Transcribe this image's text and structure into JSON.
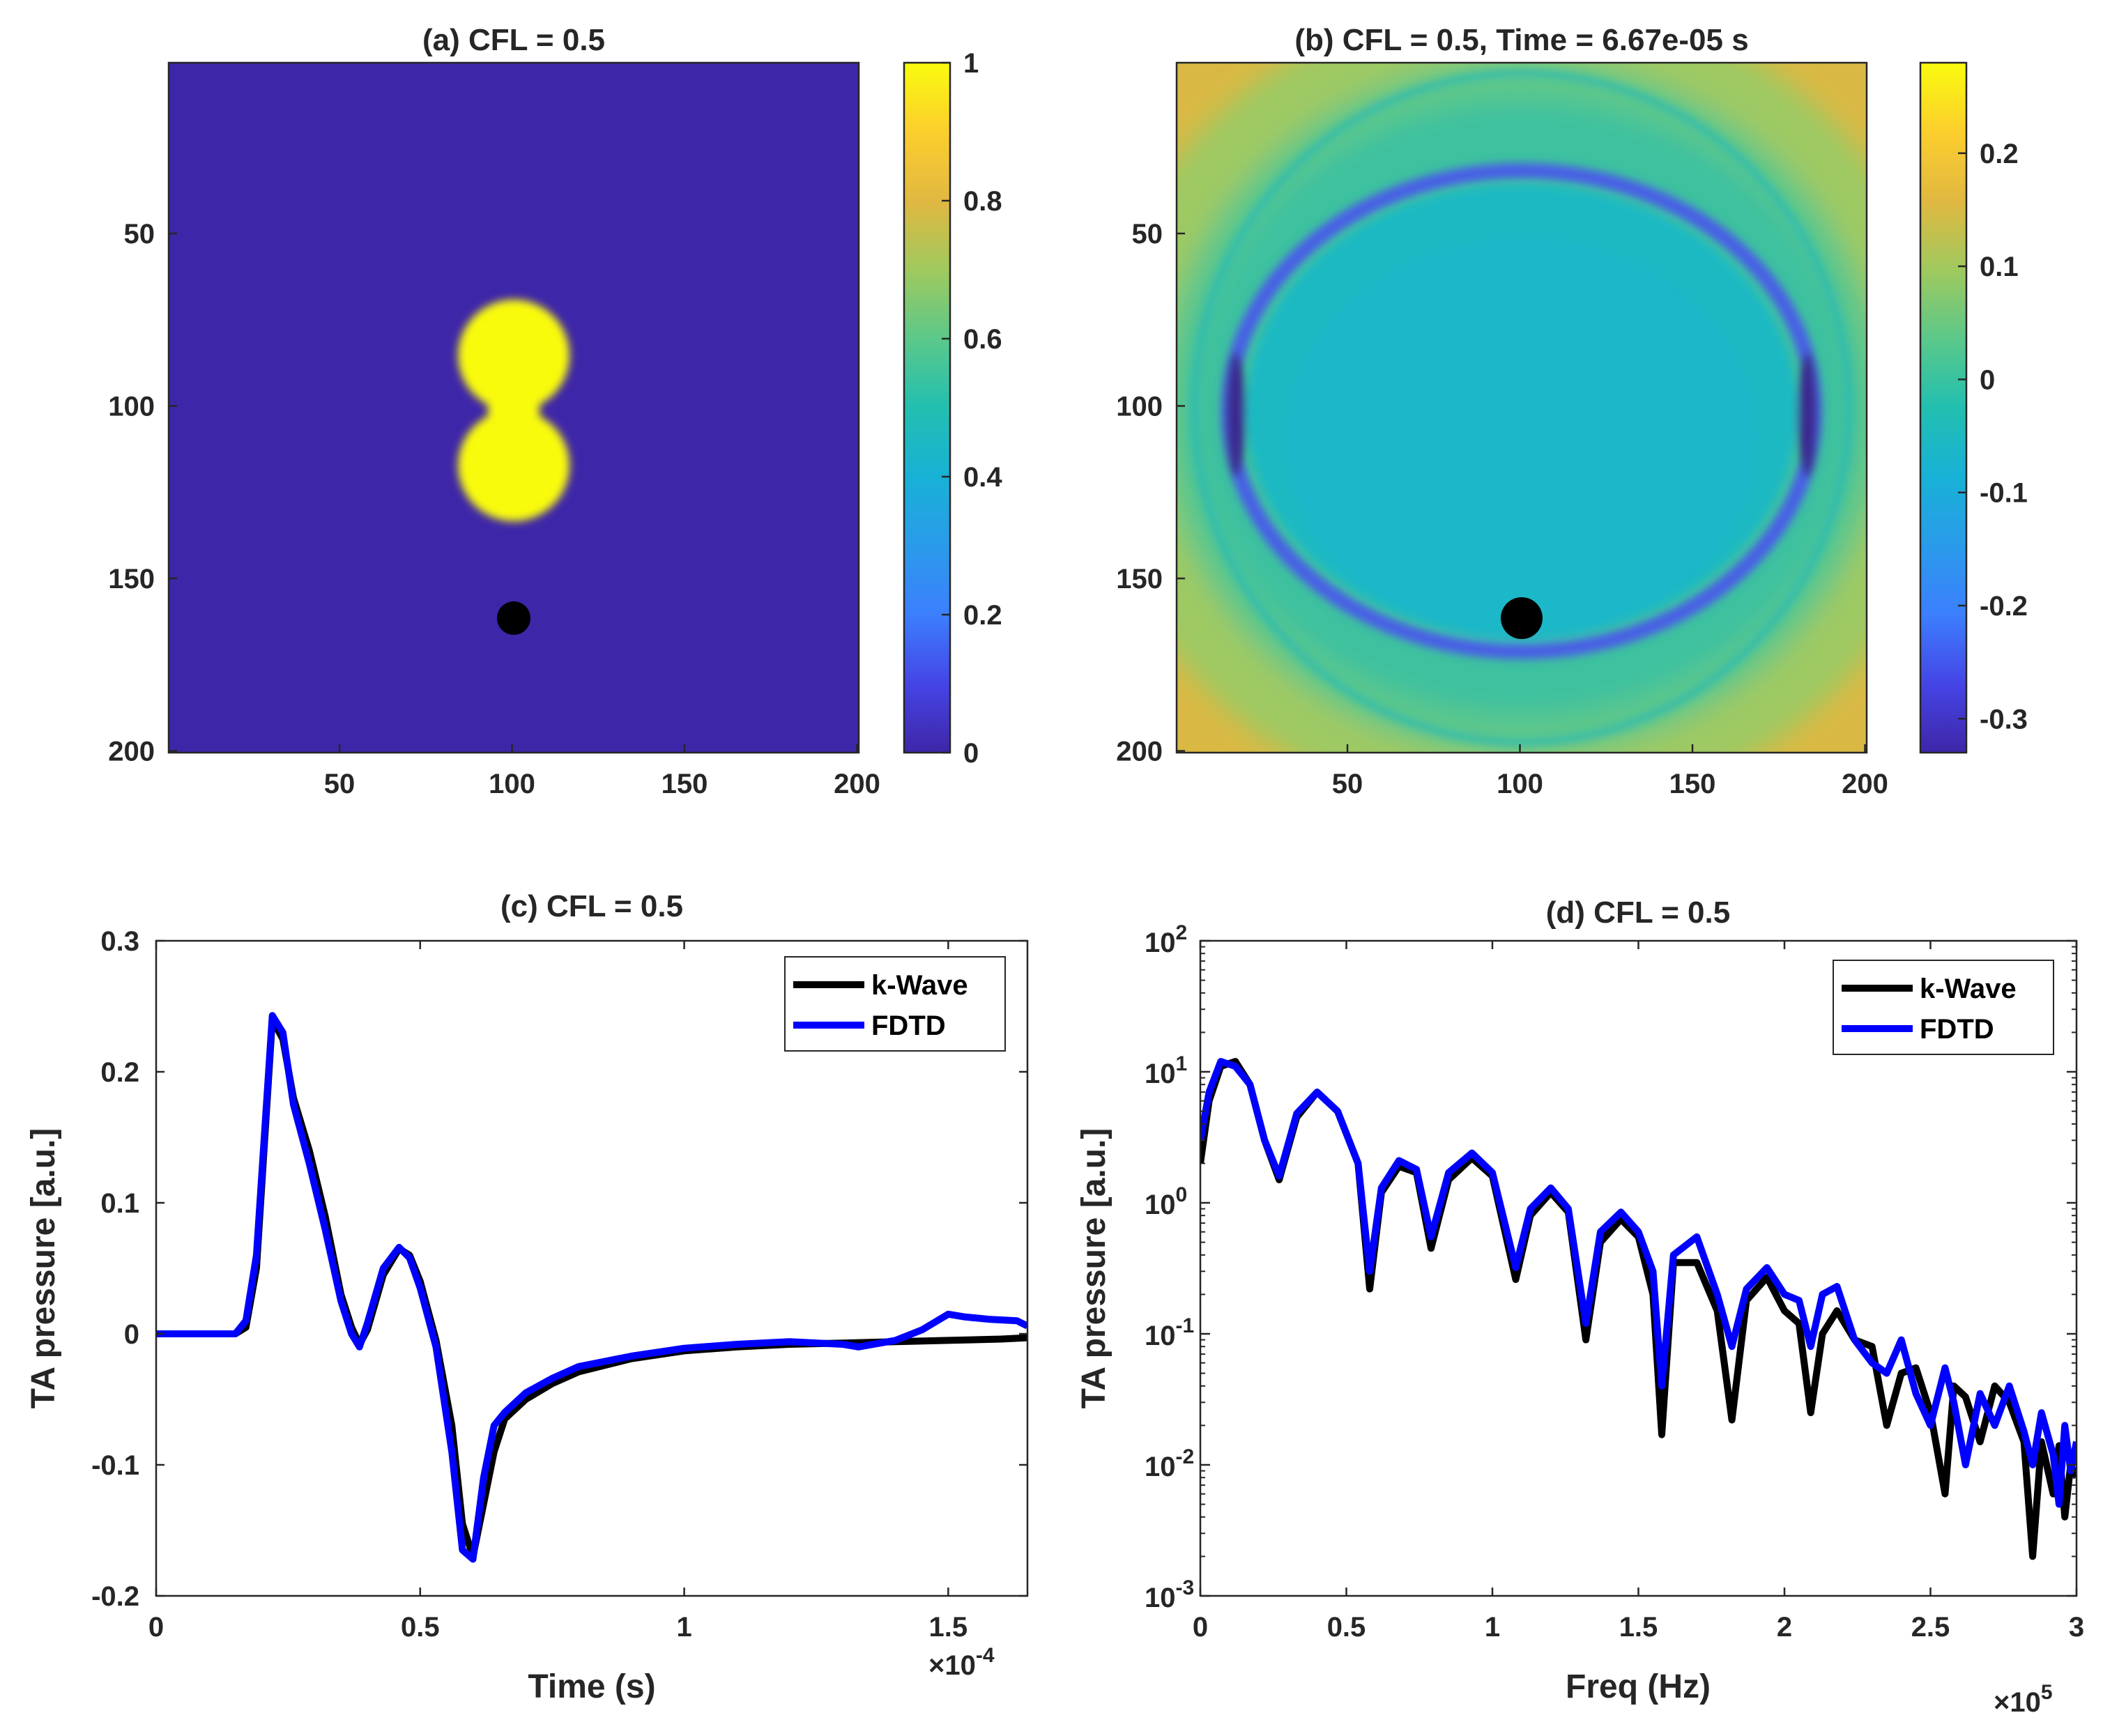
{
  "chart_data": [
    {
      "type": "heatmap",
      "title": "(a) CFL = 0.5",
      "xticks": [
        "50",
        "100",
        "150",
        "200"
      ],
      "yticks": [
        "50",
        "100",
        "150",
        "200"
      ],
      "xlim": [
        0.5,
        200.5
      ],
      "ylim": [
        0.5,
        200.5
      ],
      "colorbar": {
        "ticks": [
          "0",
          "0.2",
          "0.4",
          "0.6",
          "0.8",
          "1"
        ],
        "range": [
          0,
          1
        ]
      },
      "source": {
        "centers": [
          [
            100,
            84
          ],
          [
            100,
            116
          ]
        ],
        "radius": 16,
        "value": 1
      },
      "detector": {
        "x": 100,
        "y": 160
      },
      "colormap": "parula"
    },
    {
      "type": "heatmap",
      "title": "(b) CFL = 0.5, Time = 6.67e-05 s",
      "xticks": [
        "50",
        "100",
        "150",
        "200"
      ],
      "yticks": [
        "50",
        "100",
        "150",
        "200"
      ],
      "xlim": [
        0.5,
        200.5
      ],
      "ylim": [
        0.5,
        200.5
      ],
      "colorbar": {
        "ticks": [
          "0.2",
          "0.1",
          "0",
          "-0.1",
          "-0.2",
          "-0.3"
        ],
        "range": [
          -0.33,
          0.28
        ]
      },
      "detector": {
        "x": 100,
        "y": 160
      },
      "colormap": "parula"
    },
    {
      "type": "line",
      "title": "(c) CFL = 0.5",
      "xlabel": "Time (s)",
      "ylabel": "TA pressure [a.u.]",
      "xlim": [
        0,
        0.000165
      ],
      "ylim": [
        -0.2,
        0.3
      ],
      "xticks": [
        "0",
        "0.5",
        "1",
        "1.5"
      ],
      "yticks": [
        "0.3",
        "0.2",
        "0.1",
        "0",
        "-0.1",
        "-0.2"
      ],
      "x_exponent": "×10",
      "x_exponent_power": "-4",
      "legend_position": "top-right",
      "series": [
        {
          "name": "k-Wave",
          "color": "#000000",
          "x": [
            0,
            0.15,
            0.17,
            0.19,
            0.22,
            0.24,
            0.26,
            0.29,
            0.32,
            0.35,
            0.37,
            0.385,
            0.4,
            0.43,
            0.46,
            0.48,
            0.5,
            0.53,
            0.56,
            0.58,
            0.6,
            0.62,
            0.64,
            0.66,
            0.7,
            0.75,
            0.8,
            0.9,
            1.0,
            1.1,
            1.2,
            1.3,
            1.4,
            1.5,
            1.6,
            1.65
          ],
          "y": [
            0,
            0,
            0.005,
            0.05,
            0.24,
            0.225,
            0.18,
            0.14,
            0.09,
            0.03,
            0.005,
            -0.008,
            0.003,
            0.045,
            0.065,
            0.06,
            0.04,
            -0.005,
            -0.07,
            -0.145,
            -0.17,
            -0.13,
            -0.09,
            -0.065,
            -0.05,
            -0.038,
            -0.029,
            -0.019,
            -0.013,
            -0.01,
            -0.008,
            -0.007,
            -0.006,
            -0.005,
            -0.004,
            -0.003
          ]
        },
        {
          "name": "FDTD",
          "color": "#0000ff",
          "x": [
            0,
            0.15,
            0.17,
            0.19,
            0.22,
            0.24,
            0.26,
            0.29,
            0.32,
            0.35,
            0.37,
            0.385,
            0.4,
            0.43,
            0.46,
            0.48,
            0.5,
            0.53,
            0.56,
            0.58,
            0.6,
            0.62,
            0.64,
            0.66,
            0.7,
            0.75,
            0.8,
            0.9,
            1.0,
            1.1,
            1.2,
            1.3,
            1.33,
            1.4,
            1.45,
            1.5,
            1.53,
            1.58,
            1.63,
            1.65
          ],
          "y": [
            0,
            0,
            0.01,
            0.06,
            0.243,
            0.23,
            0.175,
            0.13,
            0.08,
            0.025,
            0.0,
            -0.01,
            0.008,
            0.05,
            0.066,
            0.058,
            0.035,
            -0.01,
            -0.09,
            -0.165,
            -0.172,
            -0.11,
            -0.07,
            -0.06,
            -0.045,
            -0.034,
            -0.025,
            -0.017,
            -0.011,
            -0.008,
            -0.006,
            -0.008,
            -0.01,
            -0.005,
            0.003,
            0.015,
            0.013,
            0.011,
            0.01,
            0.006
          ]
        }
      ]
    },
    {
      "type": "line",
      "title": "(d) CFL = 0.5",
      "xlabel": "Freq (Hz)",
      "ylabel": "TA pressure [a.u.]",
      "xscale": "linear",
      "yscale": "log",
      "xlim": [
        0,
        300000
      ],
      "ylim": [
        0.001,
        100
      ],
      "xticks": [
        "0",
        "0.5",
        "1",
        "1.5",
        "2",
        "2.5",
        "3"
      ],
      "yticks": [
        {
          "base": "10",
          "exp": "2",
          "value": 100
        },
        {
          "base": "10",
          "exp": "1",
          "value": 10
        },
        {
          "base": "10",
          "exp": "0",
          "value": 1
        },
        {
          "base": "10",
          "exp": "-1",
          "value": 0.1
        },
        {
          "base": "10",
          "exp": "-2",
          "value": 0.01
        },
        {
          "base": "10",
          "exp": "-3",
          "value": 0.001
        }
      ],
      "x_exponent": "×10",
      "x_exponent_power": "5",
      "legend_position": "top-right",
      "series": [
        {
          "name": "k-Wave",
          "color": "#000000",
          "x": [
            0,
            0.03,
            0.07,
            0.12,
            0.17,
            0.22,
            0.27,
            0.33,
            0.4,
            0.47,
            0.54,
            0.58,
            0.62,
            0.68,
            0.74,
            0.79,
            0.85,
            0.93,
            1.0,
            1.08,
            1.13,
            1.2,
            1.26,
            1.32,
            1.37,
            1.44,
            1.5,
            1.55,
            1.58,
            1.62,
            1.7,
            1.77,
            1.82,
            1.87,
            1.94,
            2.0,
            2.05,
            2.09,
            2.13,
            2.18,
            2.24,
            2.3,
            2.35,
            2.4,
            2.45,
            2.5,
            2.55,
            2.58,
            2.62,
            2.67,
            2.72,
            2.77,
            2.82,
            2.85,
            2.88,
            2.92,
            2.94,
            2.96,
            2.98,
            3.0
          ],
          "y": [
            2,
            6,
            11,
            12,
            8,
            3,
            1.5,
            4.5,
            7,
            5,
            2,
            0.22,
            1.2,
            1.9,
            1.7,
            0.45,
            1.5,
            2.2,
            1.6,
            0.26,
            0.8,
            1.2,
            0.85,
            0.09,
            0.5,
            0.75,
            0.55,
            0.2,
            0.017,
            0.35,
            0.35,
            0.15,
            0.022,
            0.18,
            0.27,
            0.15,
            0.12,
            0.025,
            0.1,
            0.15,
            0.09,
            0.08,
            0.02,
            0.05,
            0.055,
            0.025,
            0.006,
            0.04,
            0.033,
            0.015,
            0.04,
            0.03,
            0.015,
            0.002,
            0.015,
            0.006,
            0.014,
            0.004,
            0.01,
            0.008
          ]
        },
        {
          "name": "FDTD",
          "color": "#0000ff",
          "x": [
            0,
            0.03,
            0.07,
            0.12,
            0.17,
            0.22,
            0.27,
            0.33,
            0.4,
            0.47,
            0.54,
            0.58,
            0.62,
            0.68,
            0.74,
            0.79,
            0.85,
            0.93,
            1.0,
            1.08,
            1.13,
            1.2,
            1.26,
            1.32,
            1.37,
            1.44,
            1.5,
            1.55,
            1.58,
            1.62,
            1.7,
            1.77,
            1.82,
            1.87,
            1.94,
            2.0,
            2.05,
            2.09,
            2.13,
            2.18,
            2.24,
            2.3,
            2.35,
            2.4,
            2.45,
            2.5,
            2.55,
            2.58,
            2.62,
            2.67,
            2.72,
            2.77,
            2.82,
            2.85,
            2.88,
            2.92,
            2.94,
            2.96,
            2.98,
            3.0
          ],
          "y": [
            3,
            7,
            12,
            11,
            8,
            3,
            1.6,
            4.8,
            7,
            5,
            2,
            0.3,
            1.3,
            2.1,
            1.8,
            0.55,
            1.7,
            2.4,
            1.7,
            0.32,
            0.9,
            1.3,
            0.9,
            0.12,
            0.6,
            0.85,
            0.6,
            0.3,
            0.04,
            0.4,
            0.55,
            0.2,
            0.08,
            0.22,
            0.32,
            0.2,
            0.18,
            0.08,
            0.2,
            0.23,
            0.09,
            0.06,
            0.05,
            0.09,
            0.035,
            0.02,
            0.055,
            0.03,
            0.01,
            0.035,
            0.02,
            0.04,
            0.018,
            0.01,
            0.025,
            0.012,
            0.005,
            0.02,
            0.009,
            0.015
          ]
        }
      ]
    }
  ]
}
